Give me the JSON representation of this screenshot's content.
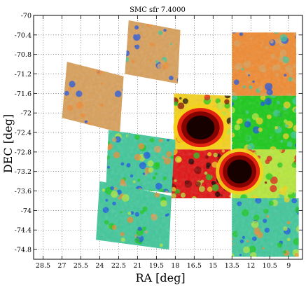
{
  "chart_data": {
    "type": "heatmap",
    "title": "SMC sfr 7.4000",
    "xlabel": "RA [deg]",
    "ylabel": "DEC [deg]",
    "x_inverted": true,
    "xlim": [
      29.25,
      7.9
    ],
    "ylim": [
      -75.0,
      -70.0
    ],
    "x_ticks": [
      28.5,
      27,
      25.5,
      24,
      22.5,
      21,
      19.5,
      18,
      16.5,
      15,
      13.5,
      12,
      10.5,
      9
    ],
    "x_tick_labels": [
      "28.5",
      "27",
      "25.5",
      "24",
      "22.5",
      "21",
      "19.5",
      "18",
      "16.5",
      "15",
      "13.5",
      "12",
      "10.5",
      "9"
    ],
    "y_ticks": [
      -70,
      -70.4,
      -70.8,
      -71.2,
      -71.6,
      -72,
      -72.4,
      -72.8,
      -73.2,
      -73.6,
      -74,
      -74.4,
      -74.8
    ],
    "y_tick_labels": [
      "-70",
      "-70.4",
      "-70.8",
      "-71.2",
      "-71.6",
      "-72",
      "-72.4",
      "-72.8",
      "-73.2",
      "-73.6",
      "-74",
      "-74.4",
      "-74.8"
    ],
    "grid": true,
    "grid_style": "dotted",
    "colormap": [
      "#0a0000",
      "#7a0000",
      "#e01010",
      "#f08a30",
      "#f5d21a",
      "#b7e83a",
      "#18c918",
      "#3fc79a",
      "#1650e6",
      "#d9a05a"
    ],
    "tiles": [
      {
        "name": "tile-north-center",
        "corners": [
          [
            21.7,
            -70.1
          ],
          [
            17.6,
            -70.3
          ],
          [
            17.8,
            -71.4
          ],
          [
            22.0,
            -71.2
          ]
        ],
        "level": 0.05
      },
      {
        "name": "tile-north-east",
        "corners": [
          [
            26.6,
            -70.95
          ],
          [
            22.1,
            -71.25
          ],
          [
            22.4,
            -72.4
          ],
          [
            27.0,
            -72.1
          ]
        ],
        "level": 0.0
      },
      {
        "name": "tile-north-west",
        "corners": [
          [
            13.5,
            -70.35
          ],
          [
            8.4,
            -70.35
          ],
          [
            8.4,
            -71.65
          ],
          [
            13.5,
            -71.65
          ]
        ],
        "level": 0.1
      },
      {
        "name": "tile-bar-upper-left",
        "corners": [
          [
            18.1,
            -71.6
          ],
          [
            13.6,
            -71.65
          ],
          [
            13.6,
            -72.75
          ],
          [
            18.1,
            -72.75
          ]
        ],
        "level": 0.7
      },
      {
        "name": "tile-wing-upper",
        "corners": [
          [
            13.5,
            -71.65
          ],
          [
            8.4,
            -71.65
          ],
          [
            8.4,
            -72.75
          ],
          [
            13.5,
            -72.75
          ]
        ],
        "level": 0.45
      },
      {
        "name": "tile-east-upper",
        "corners": [
          [
            23.3,
            -72.35
          ],
          [
            18.0,
            -72.55
          ],
          [
            18.0,
            -73.65
          ],
          [
            23.5,
            -73.5
          ]
        ],
        "level": 0.3
      },
      {
        "name": "tile-bar-lower-left",
        "corners": [
          [
            18.1,
            -72.75
          ],
          [
            13.6,
            -72.75
          ],
          [
            13.6,
            -73.75
          ],
          [
            18.3,
            -73.75
          ]
        ],
        "level": 0.75
      },
      {
        "name": "tile-wing-lower",
        "corners": [
          [
            13.5,
            -72.75
          ],
          [
            8.4,
            -72.75
          ],
          [
            8.4,
            -73.75
          ],
          [
            13.5,
            -73.75
          ]
        ],
        "level": 0.6
      },
      {
        "name": "tile-east-lower",
        "corners": [
          [
            24.0,
            -73.4
          ],
          [
            18.3,
            -73.7
          ],
          [
            18.5,
            -74.8
          ],
          [
            24.3,
            -74.6
          ]
        ],
        "level": 0.3
      },
      {
        "name": "tile-south-west",
        "corners": [
          [
            13.5,
            -73.75
          ],
          [
            8.2,
            -73.75
          ],
          [
            8.2,
            -74.95
          ],
          [
            13.5,
            -74.95
          ]
        ],
        "level": 0.35
      }
    ],
    "features": [
      {
        "name": "high-sfr-core-north",
        "center": [
          16.0,
          -72.3
        ],
        "radius": [
          1.6,
          0.35
        ],
        "level": 0.98
      },
      {
        "name": "high-sfr-core-south",
        "center": [
          12.9,
          -73.2
        ],
        "radius": [
          1.4,
          0.35
        ],
        "level": 0.95
      }
    ]
  }
}
